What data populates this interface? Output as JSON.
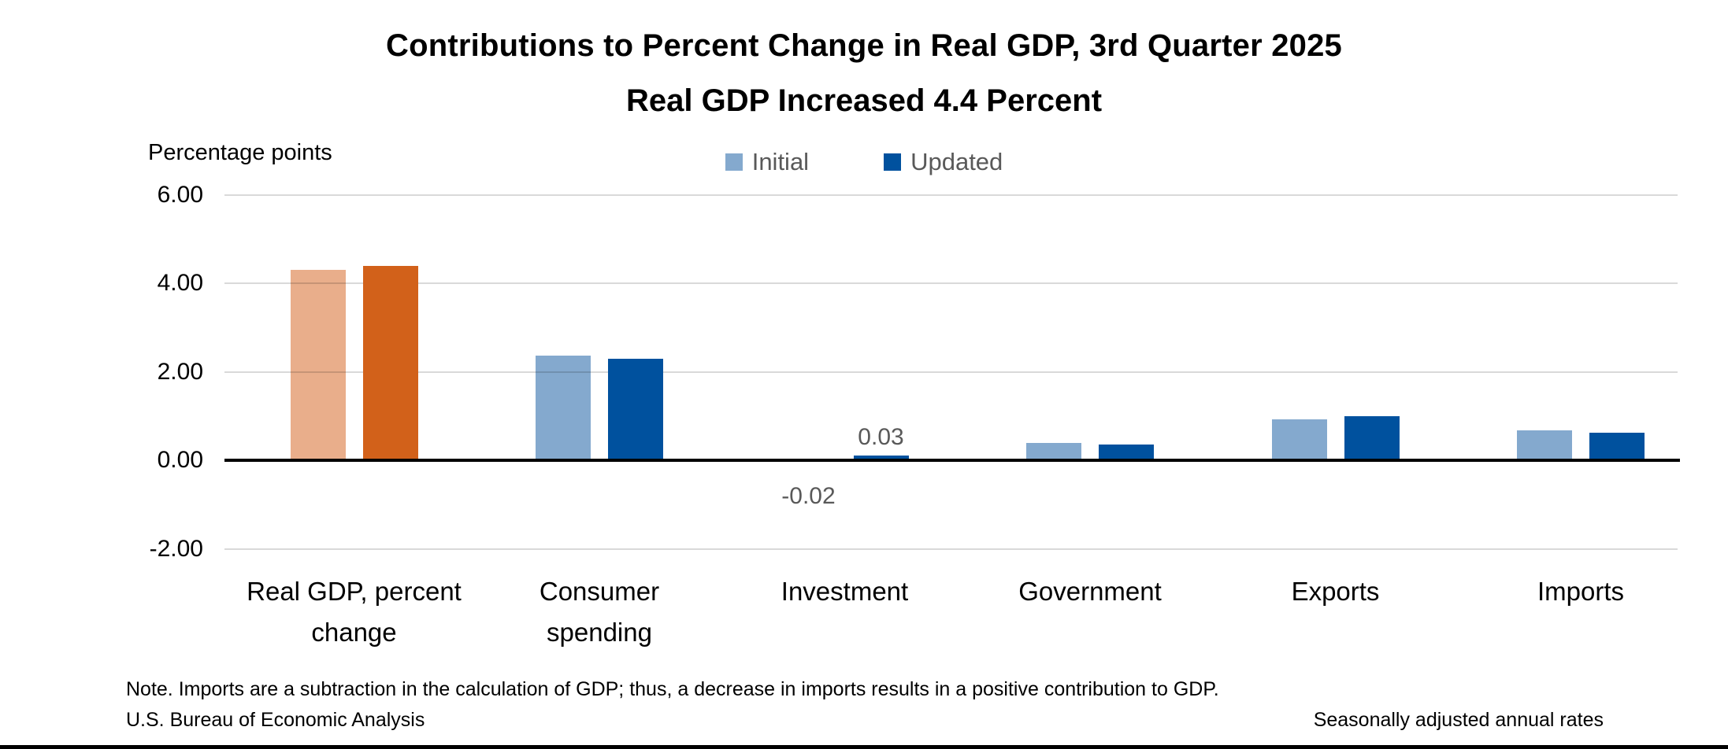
{
  "chart_data": {
    "type": "bar",
    "title": "Contributions to Percent Change in Real GDP, 3rd Quarter 2025",
    "subtitle": "Real GDP Increased 4.4 Percent",
    "ylabel": "Percentage points",
    "ylim": [
      -2.0,
      6.0
    ],
    "grid": true,
    "legend_position": "top-center",
    "yticks": [
      {
        "value": 6,
        "label": "6.00"
      },
      {
        "value": 4,
        "label": "4.00"
      },
      {
        "value": 2,
        "label": "2.00"
      },
      {
        "value": 0,
        "label": "0.00"
      },
      {
        "value": -2,
        "label": "-2.00"
      }
    ],
    "categories": [
      "Real GDP, percent change",
      "Consumer spending",
      "Investment",
      "Government",
      "Exports",
      "Imports"
    ],
    "category_label_lines": [
      [
        "Real GDP, percent",
        "change"
      ],
      [
        "Consumer",
        "spending"
      ],
      [
        "Investment"
      ],
      [
        "Government"
      ],
      [
        "Exports"
      ],
      [
        "Imports"
      ]
    ],
    "highlight_category_index": 0,
    "series": [
      {
        "name": "Initial",
        "color": "#84A9CE",
        "highlight_color": "#E9AE8B",
        "values": [
          4.3,
          2.36,
          -0.02,
          0.39,
          0.92,
          0.68
        ]
      },
      {
        "name": "Updated",
        "color": "#00519E",
        "highlight_color": "#D2611A",
        "values": [
          4.4,
          2.3,
          0.03,
          0.36,
          1.0,
          0.62
        ]
      }
    ],
    "data_labels": [
      {
        "category_index": 2,
        "series_index": 0,
        "text": "-0.02",
        "position": "below"
      },
      {
        "category_index": 2,
        "series_index": 1,
        "text": "0.03",
        "position": "above"
      }
    ],
    "colors": {
      "gridline": "#D9D9D9",
      "axis_line": "#000000",
      "legend_text": "#595959",
      "data_label_text": "#595959",
      "text": "#000000"
    }
  },
  "footer": {
    "note": "Note. Imports are a subtraction in the calculation of GDP; thus, a decrease in imports results in a positive contribution to GDP.",
    "source": "U.S. Bureau of Economic Analysis",
    "rates_note": "Seasonally adjusted annual rates"
  }
}
